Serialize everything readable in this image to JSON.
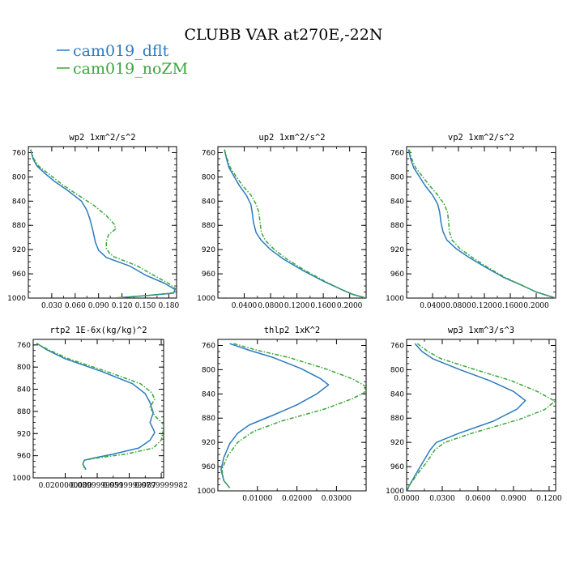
{
  "figure": {
    "title": "CLUBB VAR at270E,-22N",
    "legend": [
      {
        "name": "cam019_dflt",
        "color": "#2b7bbf"
      },
      {
        "name": "cam019_noZM",
        "color": "#3aa63a"
      }
    ]
  },
  "chart_data": [
    {
      "type": "line",
      "title": "wp2  1xm^2/s^2",
      "ylim": [
        750,
        1000
      ],
      "xlim": [
        0.0,
        0.19
      ],
      "yticks": [
        760,
        800,
        840,
        880,
        920,
        960,
        1000
      ],
      "xticks": [
        {
          "v": 0.03,
          "label": "0.030"
        },
        {
          "v": 0.06,
          "label": "0.060"
        },
        {
          "v": 0.09,
          "label": "0.090"
        },
        {
          "v": 0.12,
          "label": "0.120"
        },
        {
          "v": 0.15,
          "label": "0.150"
        },
        {
          "v": 0.18,
          "label": "0.180"
        }
      ],
      "series": [
        {
          "name": "cam019_dflt",
          "points": [
            [
              0.003,
              755
            ],
            [
              0.006,
              770
            ],
            [
              0.011,
              782
            ],
            [
              0.022,
              795
            ],
            [
              0.033,
              807
            ],
            [
              0.05,
              822
            ],
            [
              0.068,
              840
            ],
            [
              0.075,
              855
            ],
            [
              0.079,
              870
            ],
            [
              0.083,
              890
            ],
            [
              0.086,
              908
            ],
            [
              0.09,
              921
            ],
            [
              0.1,
              933
            ],
            [
              0.13,
              947
            ],
            [
              0.15,
              962
            ],
            [
              0.175,
              976
            ],
            [
              0.188,
              986
            ],
            [
              0.186,
              992
            ],
            [
              0.15,
              996
            ],
            [
              0.11,
              1000
            ]
          ]
        },
        {
          "name": "cam019_noZM",
          "points": [
            [
              0.003,
              755
            ],
            [
              0.007,
              770
            ],
            [
              0.013,
              782
            ],
            [
              0.028,
              797
            ],
            [
              0.045,
              814
            ],
            [
              0.065,
              831
            ],
            [
              0.085,
              848
            ],
            [
              0.1,
              864
            ],
            [
              0.11,
              878
            ],
            [
              0.112,
              886
            ],
            [
              0.103,
              895
            ],
            [
              0.1,
              906
            ],
            [
              0.1,
              918
            ],
            [
              0.104,
              926
            ],
            [
              0.11,
              932
            ],
            [
              0.14,
              947
            ],
            [
              0.16,
              962
            ],
            [
              0.18,
              976
            ],
            [
              0.19,
              986
            ],
            [
              0.188,
              991
            ],
            [
              0.15,
              996
            ],
            [
              0.11,
              1000
            ]
          ]
        }
      ]
    },
    {
      "type": "line",
      "title": "up2  1xm^2/s^2",
      "ylim": [
        750,
        1000
      ],
      "xlim": [
        0.0,
        0.225
      ],
      "yticks": [
        760,
        800,
        840,
        880,
        920,
        960,
        1000
      ],
      "xticks": [
        {
          "v": 0.04,
          "label": "0.0400"
        },
        {
          "v": 0.08,
          "label": "0.0800"
        },
        {
          "v": 0.12,
          "label": "0.1200"
        },
        {
          "v": 0.16,
          "label": "0.1600"
        },
        {
          "v": 0.2,
          "label": "0.2000"
        }
      ],
      "series": [
        {
          "name": "cam019_dflt",
          "points": [
            [
              0.01,
              755
            ],
            [
              0.013,
              770
            ],
            [
              0.017,
              785
            ],
            [
              0.025,
              800
            ],
            [
              0.033,
              815
            ],
            [
              0.043,
              830
            ],
            [
              0.05,
              845
            ],
            [
              0.052,
              858
            ],
            [
              0.054,
              875
            ],
            [
              0.058,
              892
            ],
            [
              0.066,
              905
            ],
            [
              0.08,
              920
            ],
            [
              0.1,
              936
            ],
            [
              0.13,
              955
            ],
            [
              0.16,
              972
            ],
            [
              0.19,
              987
            ],
            [
              0.205,
              994
            ],
            [
              0.225,
              1000
            ]
          ]
        },
        {
          "name": "cam019_noZM",
          "points": [
            [
              0.01,
              755
            ],
            [
              0.014,
              770
            ],
            [
              0.019,
              785
            ],
            [
              0.028,
              800
            ],
            [
              0.038,
              815
            ],
            [
              0.05,
              830
            ],
            [
              0.058,
              845
            ],
            [
              0.062,
              858
            ],
            [
              0.064,
              875
            ],
            [
              0.066,
              892
            ],
            [
              0.072,
              905
            ],
            [
              0.086,
              920
            ],
            [
              0.105,
              936
            ],
            [
              0.133,
              955
            ],
            [
              0.162,
              972
            ],
            [
              0.19,
              987
            ],
            [
              0.205,
              994
            ],
            [
              0.225,
              1000
            ]
          ]
        }
      ]
    },
    {
      "type": "line",
      "title": "vp2  1xm^2/s^2",
      "ylim": [
        750,
        1000
      ],
      "xlim": [
        0.0,
        0.23
      ],
      "yticks": [
        760,
        800,
        840,
        880,
        920,
        960,
        1000
      ],
      "xticks": [
        {
          "v": 0.04,
          "label": "0.0400"
        },
        {
          "v": 0.08,
          "label": "0.0800"
        },
        {
          "v": 0.12,
          "label": "0.1200"
        },
        {
          "v": 0.16,
          "label": "0.1600"
        },
        {
          "v": 0.2,
          "label": "0.2000"
        }
      ],
      "series": [
        {
          "name": "cam019_dflt",
          "points": [
            [
              0.003,
              755
            ],
            [
              0.006,
              770
            ],
            [
              0.011,
              785
            ],
            [
              0.02,
              800
            ],
            [
              0.029,
              815
            ],
            [
              0.04,
              830
            ],
            [
              0.048,
              845
            ],
            [
              0.051,
              858
            ],
            [
              0.053,
              875
            ],
            [
              0.056,
              890
            ],
            [
              0.062,
              904
            ],
            [
              0.076,
              918
            ],
            [
              0.095,
              932
            ],
            [
              0.12,
              948
            ],
            [
              0.15,
              966
            ],
            [
              0.18,
              980
            ],
            [
              0.2,
              990
            ],
            [
              0.23,
              1000
            ]
          ]
        },
        {
          "name": "cam019_noZM",
          "points": [
            [
              0.004,
              755
            ],
            [
              0.008,
              770
            ],
            [
              0.014,
              785
            ],
            [
              0.025,
              800
            ],
            [
              0.036,
              815
            ],
            [
              0.048,
              830
            ],
            [
              0.058,
              845
            ],
            [
              0.063,
              858
            ],
            [
              0.065,
              875
            ],
            [
              0.066,
              890
            ],
            [
              0.07,
              904
            ],
            [
              0.082,
              918
            ],
            [
              0.1,
              932
            ],
            [
              0.123,
              948
            ],
            [
              0.152,
              966
            ],
            [
              0.18,
              980
            ],
            [
              0.2,
              990
            ],
            [
              0.23,
              1000
            ]
          ]
        }
      ]
    },
    {
      "type": "line",
      "title": "rtp2  1E-6x(kg/kg)^2",
      "ylim": [
        750,
        1000
      ],
      "xlim": [
        0.0,
        0.0815
      ],
      "yticks": [
        760,
        800,
        840,
        880,
        920,
        960,
        1000
      ],
      "xticks": [
        {
          "v": 0.02,
          "label": "0.0200000000"
        },
        {
          "v": 0.04,
          "label": "0.0399999991"
        },
        {
          "v": 0.06,
          "label": "0.0599999987"
        },
        {
          "v": 0.08,
          "label": "0.0799999982"
        }
      ],
      "series": [
        {
          "name": "cam019_dflt",
          "points": [
            [
              0.002,
              757
            ],
            [
              0.008,
              768
            ],
            [
              0.02,
              785
            ],
            [
              0.043,
              808
            ],
            [
              0.062,
              830
            ],
            [
              0.07,
              848
            ],
            [
              0.073,
              864
            ],
            [
              0.075,
              882
            ],
            [
              0.073,
              900
            ],
            [
              0.076,
              918
            ],
            [
              0.073,
              932
            ],
            [
              0.066,
              946
            ],
            [
              0.05,
              957
            ],
            [
              0.038,
              964
            ],
            [
              0.032,
              968
            ],
            [
              0.031,
              975
            ],
            [
              0.033,
              985
            ]
          ]
        },
        {
          "name": "cam019_noZM",
          "points": [
            [
              0.002,
              757
            ],
            [
              0.009,
              768
            ],
            [
              0.022,
              785
            ],
            [
              0.046,
              808
            ],
            [
              0.067,
              830
            ],
            [
              0.074,
              846
            ],
            [
              0.076,
              858
            ],
            [
              0.073,
              872
            ],
            [
              0.076,
              888
            ],
            [
              0.082,
              905
            ],
            [
              0.081,
              918
            ],
            [
              0.08,
              932
            ],
            [
              0.075,
              946
            ],
            [
              0.058,
              957
            ],
            [
              0.04,
              964
            ],
            [
              0.032,
              968
            ],
            [
              0.031,
              975
            ],
            [
              0.032,
              985
            ]
          ]
        }
      ]
    },
    {
      "type": "line",
      "title": "thlp2  1xK^2",
      "ylim": [
        750,
        1000
      ],
      "xlim": [
        0.0,
        0.0375
      ],
      "yticks": [
        760,
        800,
        840,
        880,
        920,
        960,
        1000
      ],
      "xticks": [
        {
          "v": 0.01,
          "label": "0.01000"
        },
        {
          "v": 0.02,
          "label": "0.02000"
        },
        {
          "v": 0.03,
          "label": "0.03000"
        }
      ],
      "series": [
        {
          "name": "cam019_dflt",
          "points": [
            [
              0.003,
              757
            ],
            [
              0.008,
              768
            ],
            [
              0.014,
              780
            ],
            [
              0.021,
              798
            ],
            [
              0.026,
              815
            ],
            [
              0.028,
              825
            ],
            [
              0.025,
              840
            ],
            [
              0.02,
              858
            ],
            [
              0.014,
              875
            ],
            [
              0.008,
              891
            ],
            [
              0.005,
              905
            ],
            [
              0.003,
              922
            ],
            [
              0.0015,
              945
            ],
            [
              0.0008,
              965
            ],
            [
              0.0015,
              983
            ],
            [
              0.003,
              995
            ]
          ]
        },
        {
          "name": "cam019_noZM",
          "points": [
            [
              0.004,
              757
            ],
            [
              0.01,
              768
            ],
            [
              0.018,
              780
            ],
            [
              0.027,
              798
            ],
            [
              0.034,
              815
            ],
            [
              0.0375,
              828
            ],
            [
              0.037,
              838
            ],
            [
              0.034,
              848
            ],
            [
              0.027,
              865
            ],
            [
              0.016,
              885
            ],
            [
              0.009,
              902
            ],
            [
              0.005,
              920
            ],
            [
              0.0025,
              942
            ],
            [
              0.001,
              965
            ],
            [
              0.0015,
              983
            ],
            [
              0.003,
              995
            ]
          ]
        }
      ]
    },
    {
      "type": "line",
      "title": "wp3  1xm^3/s^3",
      "ylim": [
        750,
        1000
      ],
      "xlim": [
        0.0,
        0.1255
      ],
      "yticks": [
        760,
        800,
        840,
        880,
        920,
        960,
        1000
      ],
      "xticks": [
        {
          "v": 0.0,
          "label": "0.0000"
        },
        {
          "v": 0.03,
          "label": "0.0300"
        },
        {
          "v": 0.06,
          "label": "0.0600"
        },
        {
          "v": 0.09,
          "label": "0.0900"
        },
        {
          "v": 0.12,
          "label": "0.1200"
        }
      ],
      "series": [
        {
          "name": "cam019_dflt",
          "points": [
            [
              0.007,
              757
            ],
            [
              0.013,
              770
            ],
            [
              0.022,
              782
            ],
            [
              0.045,
              800
            ],
            [
              0.07,
              818
            ],
            [
              0.09,
              836
            ],
            [
              0.1,
              851
            ],
            [
              0.093,
              865
            ],
            [
              0.073,
              885
            ],
            [
              0.044,
              905
            ],
            [
              0.025,
              920
            ],
            [
              0.02,
              932
            ],
            [
              0.013,
              955
            ],
            [
              0.007,
              975
            ],
            [
              0.002,
              992
            ],
            [
              0.0005,
              1000
            ]
          ]
        },
        {
          "name": "cam019_noZM",
          "points": [
            [
              0.009,
              757
            ],
            [
              0.018,
              770
            ],
            [
              0.029,
              782
            ],
            [
              0.058,
              800
            ],
            [
              0.088,
              818
            ],
            [
              0.11,
              836
            ],
            [
              0.125,
              852
            ],
            [
              0.116,
              866
            ],
            [
              0.095,
              882
            ],
            [
              0.055,
              905
            ],
            [
              0.032,
              920
            ],
            [
              0.024,
              932
            ],
            [
              0.016,
              955
            ],
            [
              0.008,
              975
            ],
            [
              0.002,
              992
            ],
            [
              0.0005,
              1000
            ]
          ]
        }
      ]
    }
  ]
}
